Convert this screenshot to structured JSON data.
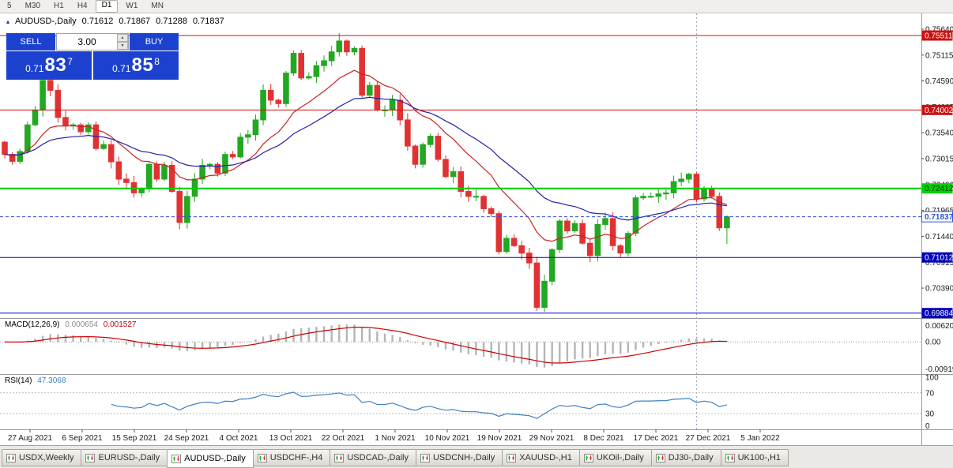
{
  "toolbar": {
    "timeframes": [
      "5",
      "M30",
      "H1",
      "H4",
      "D1",
      "W1",
      "MN"
    ],
    "active": "D1"
  },
  "chart": {
    "title": {
      "symbol_period": "AUDUSD-,Daily",
      "open": "0.71612",
      "high": "0.71867",
      "low": "0.71288",
      "close": "0.71837"
    },
    "one_click": {
      "sell_label": "SELL",
      "buy_label": "BUY",
      "volume": "3.00",
      "sell_price": {
        "big_prefix": "0.71",
        "big": "83",
        "sup": "7"
      },
      "buy_price": {
        "big_prefix": "0.71",
        "big": "85",
        "sup": "8"
      }
    },
    "price_axis": {
      "ticks": [
        0.7564,
        0.75115,
        0.7459,
        0.74065,
        0.7354,
        0.73015,
        0.7249,
        0.71965,
        0.7144,
        0.70915,
        0.7039,
        0.69865
      ]
    },
    "hlines": [
      {
        "price": 0.75511,
        "label": "0.75511",
        "color": "#cc1111",
        "width": 1,
        "text": "#ffffff"
      },
      {
        "price": 0.74002,
        "label": "0.74002",
        "color": "#cc1111",
        "width": 1,
        "text": "#ffffff"
      },
      {
        "price": 0.72412,
        "label": "0.72412",
        "color": "#00d300",
        "width": 2,
        "text": "#003300"
      },
      {
        "price": 0.71012,
        "label": "0.71012",
        "color": "#0000bb",
        "width": 1,
        "text": "#ffffff"
      },
      {
        "price": 0.69884,
        "label": "0.69884",
        "color": "#0000bb",
        "width": 1,
        "text": "#ffffff"
      }
    ],
    "bid": {
      "price": 0.71837,
      "label": "0.71837"
    },
    "separator_index": 91,
    "ma": {
      "red_period": 12,
      "blue_period": 26
    },
    "candles": {
      "first_open": 0.7335,
      "closes": [
        0.731,
        0.7296,
        0.7316,
        0.737,
        0.74,
        0.746,
        0.744,
        0.7385,
        0.7368,
        0.737,
        0.7356,
        0.737,
        0.7322,
        0.733,
        0.7295,
        0.726,
        0.7253,
        0.7232,
        0.724,
        0.729,
        0.726,
        0.7288,
        0.7235,
        0.7172,
        0.7225,
        0.726,
        0.7288,
        0.729,
        0.7272,
        0.731,
        0.7305,
        0.7345,
        0.735,
        0.738,
        0.744,
        0.742,
        0.7413,
        0.7475,
        0.7515,
        0.7465,
        0.7468,
        0.749,
        0.75,
        0.7518,
        0.754,
        0.7518,
        0.7525,
        0.743,
        0.745,
        0.74,
        0.74,
        0.742,
        0.738,
        0.7327,
        0.729,
        0.733,
        0.7347,
        0.73,
        0.7265,
        0.7275,
        0.7235,
        0.7225,
        0.7225,
        0.72,
        0.719,
        0.7113,
        0.714,
        0.7125,
        0.711,
        0.709,
        0.7,
        0.7053,
        0.7117,
        0.7175,
        0.7155,
        0.717,
        0.713,
        0.7105,
        0.7168,
        0.718,
        0.7125,
        0.711,
        0.715,
        0.7222,
        0.7225,
        0.7225,
        0.723,
        0.7232,
        0.7255,
        0.726,
        0.727,
        0.722,
        0.724,
        0.7225,
        0.71612,
        0.71837
      ],
      "overrides": {
        "5": {
          "h": 0.7477
        },
        "44": {
          "h": 0.75556
        },
        "70": {
          "l": 0.6993
        },
        "94": {
          "o": 0.7225,
          "l": 0.7155
        },
        "95": {
          "o": 0.71612,
          "h": 0.71867,
          "l": 0.71288,
          "c": 0.71837
        }
      }
    }
  },
  "macd": {
    "label": "MACD(12,26,9)",
    "value_main": "0.000654",
    "value_signal": "0.001527",
    "fast": 12,
    "slow": 26,
    "signal": 9,
    "axis_top": "0.00620",
    "axis_zero": "0.00",
    "axis_bottom": "-0.00919"
  },
  "rsi": {
    "label": "RSI(14)",
    "value": "47.3068",
    "period": 14,
    "levels": [
      70,
      30
    ],
    "axis": [
      100,
      70,
      30,
      0
    ]
  },
  "time_axis": {
    "labels": [
      "27 Aug 2021",
      "6 Sep 2021",
      "15 Sep 2021",
      "24 Sep 2021",
      "4 Oct 2021",
      "13 Oct 2021",
      "22 Oct 2021",
      "1 Nov 2021",
      "10 Nov 2021",
      "19 Nov 2021",
      "29 Nov 2021",
      "8 Dec 2021",
      "17 Dec 2021",
      "27 Dec 2021",
      "5 Jan 2022"
    ]
  },
  "tabs": [
    "USDX,Weekly",
    "EURUSD-,Daily",
    "AUDUSD-,Daily",
    "USDCHF-,H4",
    "USDCAD-,Daily",
    "USDCNH-,Daily",
    "XAUUSD-,H1",
    "UKOil-,Daily",
    "DJ30-,Daily",
    "UK100-,H1"
  ],
  "active_tab": "AUDUSD-,Daily",
  "icons": {
    "collapse": "▴",
    "spin_up": "▲",
    "spin_down": "▼"
  },
  "colors": {
    "trade_blue": "#1c41cf",
    "bull": "#22a822",
    "bear": "#e03232",
    "ma_red": "#cc2222",
    "ma_blue": "#2222aa",
    "bid_blue": "#2d50d8",
    "macd_hist": "#b5b5b5",
    "macd_signal": "#cc0000",
    "rsi_line": "#3f7fbf",
    "axis_text": "#1a1a1a"
  }
}
